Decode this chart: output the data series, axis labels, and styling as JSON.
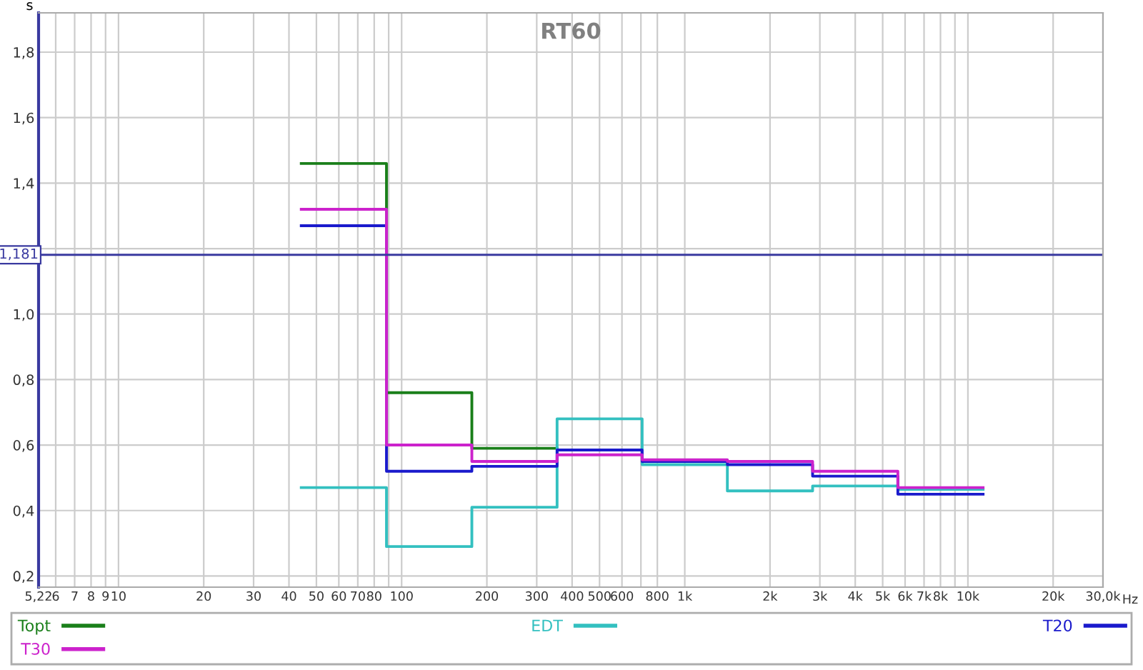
{
  "chart_data": {
    "type": "step",
    "title": "RT60",
    "xlabel": "Hz",
    "ylabel": "s",
    "x": [
      44.2,
      88.4,
      177,
      354,
      707,
      1414,
      2828,
      5657,
      11314
    ],
    "series": [
      {
        "name": "Topt",
        "color": "#1a7f1a",
        "x": [
          44.2,
          88.4,
          177,
          354
        ],
        "values": [
          1.46,
          0.76,
          0.59,
          0.59
        ]
      },
      {
        "name": "EDT",
        "color": "#33c0c0",
        "values": [
          0.47,
          0.29,
          0.41,
          0.68,
          0.54,
          0.46,
          0.475,
          0.465,
          0.465
        ]
      },
      {
        "name": "T20",
        "color": "#1a1acc",
        "values": [
          1.27,
          0.52,
          0.535,
          0.585,
          0.55,
          0.54,
          0.505,
          0.45,
          0.45
        ]
      },
      {
        "name": "T30",
        "color": "#cc22cc",
        "values": [
          1.32,
          0.6,
          0.55,
          0.57,
          0.555,
          0.55,
          0.52,
          0.47,
          0.47
        ]
      }
    ],
    "log": "x",
    "xlim": [
      5.22,
      30000
    ],
    "xticks": [
      {
        "value": 5.22,
        "label": "5,22"
      },
      6,
      7,
      8,
      {
        "value": 9,
        "label": "9"
      },
      10,
      20,
      30,
      40,
      50,
      60,
      70,
      80,
      {
        "value": 90,
        "label": null
      },
      100,
      200,
      300,
      400,
      500,
      600,
      {
        "value": 700,
        "label": null
      },
      800,
      {
        "value": 1000,
        "label": "1k"
      },
      {
        "value": 2000,
        "label": "2k"
      },
      {
        "value": 3000,
        "label": "3k"
      },
      {
        "value": 4000,
        "label": "4k"
      },
      {
        "value": 5000,
        "label": "5k"
      },
      {
        "value": 6000,
        "label": "6k"
      },
      {
        "value": 7000,
        "label": "7k"
      },
      {
        "value": 8000,
        "label": "8k"
      },
      {
        "value": 9000,
        "label": null
      },
      {
        "value": 10000,
        "label": "10k"
      },
      {
        "value": 20000,
        "label": "20k"
      },
      {
        "value": 30000,
        "label": "30,0k"
      }
    ],
    "ylim": [
      0.166,
      1.92
    ],
    "yticks": [
      {
        "value": 0.2,
        "label": "0,2"
      },
      {
        "value": 0.4,
        "label": "0,4"
      },
      {
        "value": 0.6,
        "label": "0,6"
      },
      {
        "value": 0.8,
        "label": "0,8"
      },
      {
        "value": 1.0,
        "label": "1,0"
      },
      {
        "value": 1.2,
        "label": null
      },
      {
        "value": 1.4,
        "label": "1,4"
      },
      {
        "value": 1.6,
        "label": "1,6"
      },
      {
        "value": 1.8,
        "label": "1,8"
      }
    ],
    "ref_lines": [
      {
        "axis": "y",
        "value": 1.181,
        "label": "1,181",
        "color": "#3a3aa0"
      }
    ],
    "grid": true,
    "legend": "bottom",
    "line_style": "solid",
    "marker": "none"
  }
}
